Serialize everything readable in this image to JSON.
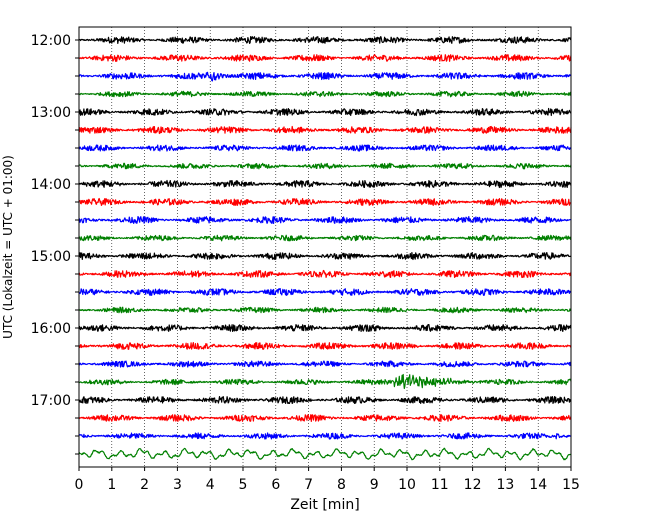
{
  "chart_data": {
    "type": "line",
    "title": "",
    "xlabel": "Zeit  [min]",
    "ylabel": "UTC (Lokalzeit = UTC + 01:00)",
    "xlim": [
      0,
      15
    ],
    "x_ticks": [
      "0",
      "1",
      "2",
      "3",
      "4",
      "5",
      "6",
      "7",
      "8",
      "9",
      "10",
      "11",
      "12",
      "13",
      "14",
      "15"
    ],
    "y_tick_labels": [
      "12:00",
      "13:00",
      "14:00",
      "15:00",
      "16:00",
      "17:00"
    ],
    "row_start": "12:00",
    "row_interval_minutes": 15,
    "row_count": 24,
    "row_colors": [
      "#000000",
      "#ff0000",
      "#0000ff",
      "#008000"
    ],
    "grid": "vertical-dotted",
    "series": [
      {
        "start": "12:00",
        "color": "#000000",
        "amplitude": 0.25,
        "events": []
      },
      {
        "start": "12:15",
        "color": "#ff0000",
        "amplitude": 0.25,
        "events": []
      },
      {
        "start": "12:30",
        "color": "#0000ff",
        "amplitude": 0.25,
        "events": [
          {
            "t": 4.0,
            "width": 0.6,
            "amp": 0.35
          }
        ]
      },
      {
        "start": "12:45",
        "color": "#008000",
        "amplitude": 0.2,
        "events": []
      },
      {
        "start": "13:00",
        "color": "#000000",
        "amplitude": 0.25,
        "events": []
      },
      {
        "start": "13:15",
        "color": "#ff0000",
        "amplitude": 0.25,
        "events": []
      },
      {
        "start": "13:30",
        "color": "#0000ff",
        "amplitude": 0.22,
        "events": []
      },
      {
        "start": "13:45",
        "color": "#008000",
        "amplitude": 0.2,
        "events": []
      },
      {
        "start": "14:00",
        "color": "#000000",
        "amplitude": 0.25,
        "events": []
      },
      {
        "start": "14:15",
        "color": "#ff0000",
        "amplitude": 0.25,
        "events": []
      },
      {
        "start": "14:30",
        "color": "#0000ff",
        "amplitude": 0.25,
        "events": []
      },
      {
        "start": "14:45",
        "color": "#008000",
        "amplitude": 0.2,
        "events": []
      },
      {
        "start": "15:00",
        "color": "#000000",
        "amplitude": 0.25,
        "events": []
      },
      {
        "start": "15:15",
        "color": "#ff0000",
        "amplitude": 0.25,
        "events": []
      },
      {
        "start": "15:30",
        "color": "#0000ff",
        "amplitude": 0.25,
        "events": []
      },
      {
        "start": "15:45",
        "color": "#008000",
        "amplitude": 0.2,
        "events": []
      },
      {
        "start": "16:00",
        "color": "#000000",
        "amplitude": 0.25,
        "events": []
      },
      {
        "start": "16:15",
        "color": "#ff0000",
        "amplitude": 0.25,
        "events": []
      },
      {
        "start": "16:30",
        "color": "#0000ff",
        "amplitude": 0.22,
        "events": []
      },
      {
        "start": "16:45",
        "color": "#008000",
        "amplitude": 0.2,
        "events": [
          {
            "t": 9.9,
            "width": 1.8,
            "amp": 0.45
          }
        ]
      },
      {
        "start": "17:00",
        "color": "#000000",
        "amplitude": 0.25,
        "events": []
      },
      {
        "start": "17:15",
        "color": "#ff0000",
        "amplitude": 0.25,
        "events": []
      },
      {
        "start": "17:30",
        "color": "#0000ff",
        "amplitude": 0.22,
        "events": [
          {
            "t": 14.6,
            "width": 0.4,
            "amp": 0.2
          }
        ]
      },
      {
        "start": "17:45",
        "color": "#008000",
        "amplitude": 0.35,
        "events": [],
        "style": "long-period"
      }
    ]
  }
}
